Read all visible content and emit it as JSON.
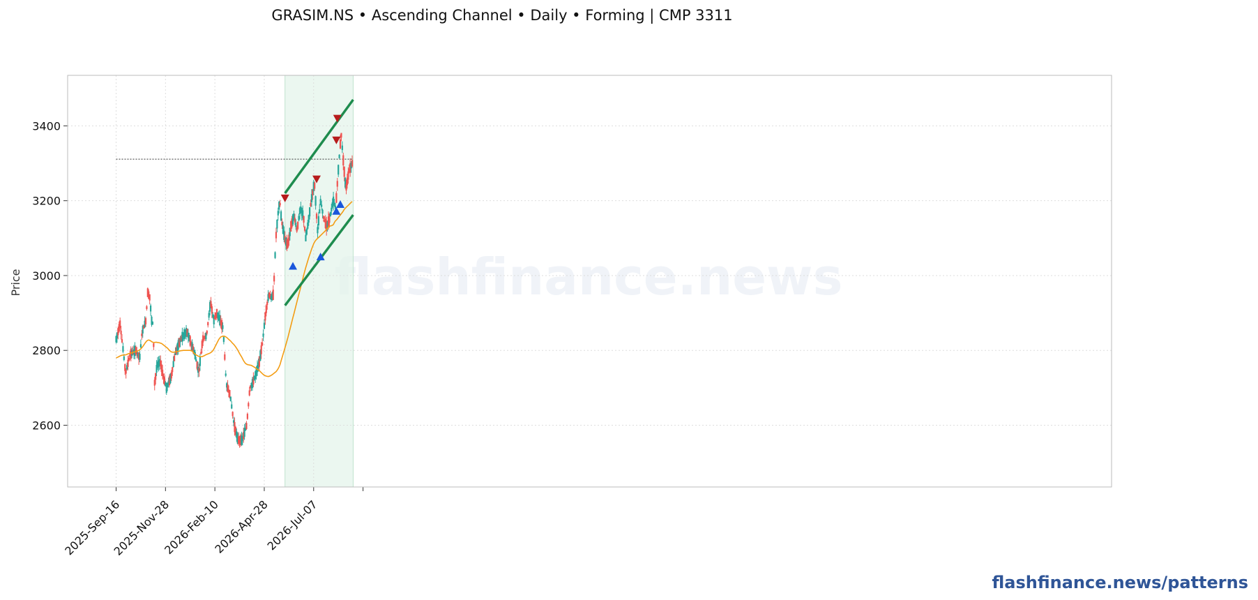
{
  "title": "GRASIM.NS  •  Ascending Channel  •  Daily  •  Forming  |  CMP 3311",
  "watermark": "flashfinance.news",
  "footer": "flashfinance.news/patterns",
  "chart_data": {
    "type": "candlestick",
    "ylabel": "Price",
    "ylim": [
      2435,
      3535
    ],
    "y_ticks": [
      2600,
      2800,
      3000,
      3200,
      3400
    ],
    "x_tick_labels": [
      "2025-Sep-16",
      "2025-Nov-28",
      "2026-Feb-10",
      "2026-Apr-28",
      "2026-Jul-07"
    ],
    "x_tick_bar_index": [
      0,
      50,
      100,
      150,
      200
    ],
    "bar_count": 240,
    "grid": true,
    "cmp": 3311,
    "cmp_line_from_bar": 0,
    "moving_average": {
      "color": "#f39c12",
      "values": [
        2780,
        2782,
        2785,
        2787,
        2788,
        2788,
        2790,
        2792,
        2793,
        2795,
        2796,
        2798,
        2800,
        2804,
        2810,
        2818,
        2825,
        2828,
        2826,
        2822,
        2821,
        2822,
        2821,
        2820,
        2818,
        2814,
        2810,
        2806,
        2800,
        2796,
        2795,
        2796,
        2797,
        2798,
        2799,
        2800,
        2800,
        2800,
        2800,
        2800,
        2798,
        2792,
        2788,
        2785,
        2783,
        2783,
        2785,
        2788,
        2790,
        2792,
        2795,
        2800,
        2810,
        2820,
        2830,
        2836,
        2838,
        2838,
        2835,
        2830,
        2826,
        2820,
        2815,
        2808,
        2800,
        2790,
        2782,
        2772,
        2765,
        2762,
        2761,
        2760,
        2757,
        2754,
        2750,
        2747,
        2742,
        2737,
        2733,
        2731,
        2730,
        2732,
        2735,
        2739,
        2743,
        2750,
        2760,
        2778,
        2795,
        2812,
        2830,
        2850,
        2870,
        2890,
        2910,
        2930,
        2950,
        2970,
        2990,
        3010,
        3028,
        3045,
        3060,
        3075,
        3088,
        3095,
        3100,
        3105,
        3110,
        3115,
        3120,
        3126,
        3132,
        3133,
        3135,
        3145,
        3150,
        3157,
        3163,
        3170,
        3178,
        3183,
        3188,
        3193,
        3198
      ]
    },
    "candle_colors": {
      "up": "#26a69a",
      "down": "#ef5350"
    },
    "channel": {
      "color": "#1e8c4e",
      "start_bar": 171,
      "end_bar": 240,
      "upper": [
        3220,
        3470
      ],
      "lower": [
        2920,
        3162
      ],
      "shaded_region_bars": [
        171,
        240
      ]
    },
    "pivot_highs": [
      {
        "bar": 171,
        "price": 3207
      },
      {
        "bar": 203,
        "price": 3258
      },
      {
        "bar": 223,
        "price": 3362
      },
      {
        "bar": 224,
        "price": 3420
      }
    ],
    "pivot_lows": [
      {
        "bar": 179,
        "price": 3025
      },
      {
        "bar": 207,
        "price": 3050
      },
      {
        "bar": 223,
        "price": 3172
      },
      {
        "bar": 227,
        "price": 3190
      }
    ],
    "marker_colors": {
      "high": "#b71c1c",
      "low": "#1a56db"
    }
  }
}
